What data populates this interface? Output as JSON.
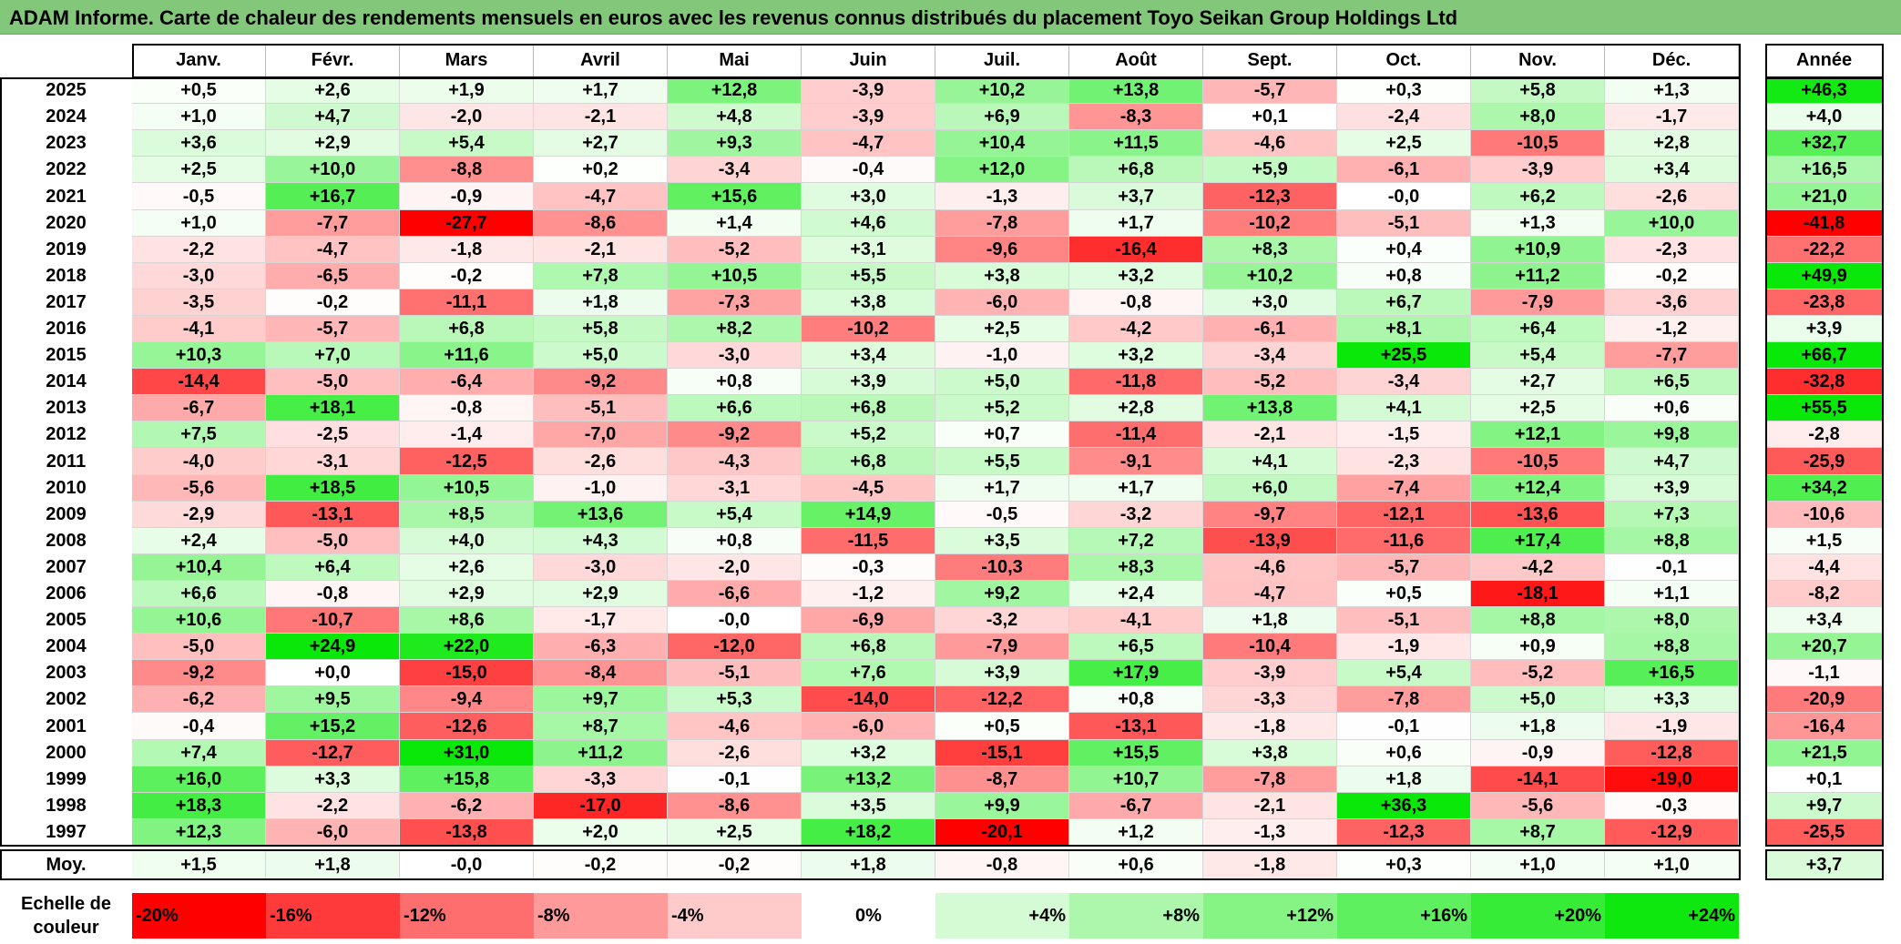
{
  "title": "ADAM Informe. Carte de chaleur des rendements mensuels en euros avec les revenus connus distribués du placement Toyo Seikan Group Holdings Ltd",
  "chart_data": {
    "type": "heatmap",
    "columns": [
      "Janv.",
      "Févr.",
      "Mars",
      "Avril",
      "Mai",
      "Juin",
      "Juil.",
      "Août",
      "Sept.",
      "Oct.",
      "Nov.",
      "Déc."
    ],
    "year_column_label": "Année",
    "rows": [
      {
        "year": "2025",
        "months": [
          "+0,5",
          "+2,6",
          "+1,9",
          "+1,7",
          "+12,8",
          "-3,9",
          "+10,2",
          "+13,8",
          "-5,7",
          "+0,3",
          "+5,8",
          "+1,3"
        ],
        "annual": "+46,3"
      },
      {
        "year": "2024",
        "months": [
          "+1,0",
          "+4,7",
          "-2,0",
          "-2,1",
          "+4,8",
          "-3,9",
          "+6,9",
          "-8,3",
          "+0,1",
          "-2,4",
          "+8,0",
          "-1,7"
        ],
        "annual": "+4,0"
      },
      {
        "year": "2023",
        "months": [
          "+3,6",
          "+2,9",
          "+5,4",
          "+2,7",
          "+9,3",
          "-4,7",
          "+10,4",
          "+11,5",
          "-4,6",
          "+2,5",
          "-10,5",
          "+2,8"
        ],
        "annual": "+32,7"
      },
      {
        "year": "2022",
        "months": [
          "+2,5",
          "+10,0",
          "-8,8",
          "+0,2",
          "-3,4",
          "-0,4",
          "+12,0",
          "+6,8",
          "+5,9",
          "-6,1",
          "-3,9",
          "+3,4"
        ],
        "annual": "+16,5"
      },
      {
        "year": "2021",
        "months": [
          "-0,5",
          "+16,7",
          "-0,9",
          "-4,7",
          "+15,6",
          "+3,0",
          "-1,3",
          "+3,7",
          "-12,3",
          "-0,0",
          "+6,2",
          "-2,6"
        ],
        "annual": "+21,0"
      },
      {
        "year": "2020",
        "months": [
          "+1,0",
          "-7,7",
          "-27,7",
          "-8,6",
          "+1,4",
          "+4,6",
          "-7,8",
          "+1,7",
          "-10,2",
          "-5,1",
          "+1,3",
          "+10,0"
        ],
        "annual": "-41,8"
      },
      {
        "year": "2019",
        "months": [
          "-2,2",
          "-4,7",
          "-1,8",
          "-2,1",
          "-5,2",
          "+3,1",
          "-9,6",
          "-16,4",
          "+8,3",
          "+0,4",
          "+10,9",
          "-2,3"
        ],
        "annual": "-22,2"
      },
      {
        "year": "2018",
        "months": [
          "-3,0",
          "-6,5",
          "-0,2",
          "+7,8",
          "+10,5",
          "+5,5",
          "+3,8",
          "+3,2",
          "+10,2",
          "+0,8",
          "+11,2",
          "-0,2"
        ],
        "annual": "+49,9"
      },
      {
        "year": "2017",
        "months": [
          "-3,5",
          "-0,2",
          "-11,1",
          "+1,8",
          "-7,3",
          "+3,8",
          "-6,0",
          "-0,8",
          "+3,0",
          "+6,7",
          "-7,9",
          "-3,6"
        ],
        "annual": "-23,8"
      },
      {
        "year": "2016",
        "months": [
          "-4,1",
          "-5,7",
          "+6,8",
          "+5,8",
          "+8,2",
          "-10,2",
          "+2,5",
          "-4,2",
          "-6,1",
          "+8,1",
          "+6,4",
          "-1,2"
        ],
        "annual": "+3,9"
      },
      {
        "year": "2015",
        "months": [
          "+10,3",
          "+7,0",
          "+11,6",
          "+5,0",
          "-3,0",
          "+3,4",
          "-1,0",
          "+3,2",
          "-3,4",
          "+25,5",
          "+5,4",
          "-7,7"
        ],
        "annual": "+66,7"
      },
      {
        "year": "2014",
        "months": [
          "-14,4",
          "-5,0",
          "-6,4",
          "-9,2",
          "+0,8",
          "+3,9",
          "+5,0",
          "-11,8",
          "-5,2",
          "-3,4",
          "+2,7",
          "+6,5"
        ],
        "annual": "-32,8"
      },
      {
        "year": "2013",
        "months": [
          "-6,7",
          "+18,1",
          "-0,8",
          "-5,1",
          "+6,6",
          "+6,8",
          "+5,2",
          "+2,8",
          "+13,8",
          "+4,1",
          "+2,5",
          "+0,6"
        ],
        "annual": "+55,5"
      },
      {
        "year": "2012",
        "months": [
          "+7,5",
          "-2,5",
          "-1,4",
          "-7,0",
          "-9,2",
          "+5,2",
          "+0,7",
          "-11,4",
          "-2,1",
          "-1,5",
          "+12,1",
          "+9,8"
        ],
        "annual": "-2,8"
      },
      {
        "year": "2011",
        "months": [
          "-4,0",
          "-3,1",
          "-12,5",
          "-2,6",
          "-4,3",
          "+6,8",
          "+5,5",
          "-9,1",
          "+4,1",
          "-2,3",
          "-10,5",
          "+4,7"
        ],
        "annual": "-25,9"
      },
      {
        "year": "2010",
        "months": [
          "-5,6",
          "+18,5",
          "+10,5",
          "-1,0",
          "-3,1",
          "-4,5",
          "+1,7",
          "+1,7",
          "+6,0",
          "-7,4",
          "+12,4",
          "+3,9"
        ],
        "annual": "+34,2"
      },
      {
        "year": "2009",
        "months": [
          "-2,9",
          "-13,1",
          "+8,5",
          "+13,6",
          "+5,4",
          "+14,9",
          "-0,5",
          "-3,2",
          "-9,7",
          "-12,1",
          "-13,6",
          "+7,3"
        ],
        "annual": "-10,6"
      },
      {
        "year": "2008",
        "months": [
          "+2,4",
          "-5,0",
          "+4,0",
          "+4,3",
          "+0,8",
          "-11,5",
          "+3,5",
          "+7,2",
          "-13,9",
          "-11,6",
          "+17,4",
          "+8,8"
        ],
        "annual": "+1,5"
      },
      {
        "year": "2007",
        "months": [
          "+10,4",
          "+6,4",
          "+2,6",
          "-3,0",
          "-2,0",
          "-0,3",
          "-10,3",
          "+8,3",
          "-4,6",
          "-5,7",
          "-4,2",
          "-0,1"
        ],
        "annual": "-4,4"
      },
      {
        "year": "2006",
        "months": [
          "+6,6",
          "-0,8",
          "+2,9",
          "+2,9",
          "-6,6",
          "-1,2",
          "+9,2",
          "+2,4",
          "-4,7",
          "+0,5",
          "-18,1",
          "+1,1"
        ],
        "annual": "-8,2"
      },
      {
        "year": "2005",
        "months": [
          "+10,6",
          "-10,7",
          "+8,6",
          "-1,7",
          "-0,0",
          "-6,9",
          "-3,2",
          "-4,1",
          "+1,8",
          "-5,1",
          "+8,8",
          "+8,0"
        ],
        "annual": "+3,4"
      },
      {
        "year": "2004",
        "months": [
          "-5,0",
          "+24,9",
          "+22,0",
          "-6,3",
          "-12,0",
          "+6,8",
          "-7,9",
          "+6,5",
          "-10,4",
          "-1,9",
          "+0,9",
          "+8,8"
        ],
        "annual": "+20,7"
      },
      {
        "year": "2003",
        "months": [
          "-9,2",
          "+0,0",
          "-15,0",
          "-8,4",
          "-5,1",
          "+7,6",
          "+3,9",
          "+17,9",
          "-3,9",
          "+5,4",
          "-5,2",
          "+16,5"
        ],
        "annual": "-1,1"
      },
      {
        "year": "2002",
        "months": [
          "-6,2",
          "+9,5",
          "-9,4",
          "+9,7",
          "+5,3",
          "-14,0",
          "-12,2",
          "+0,8",
          "-3,3",
          "-7,8",
          "+5,0",
          "+3,3"
        ],
        "annual": "-20,9"
      },
      {
        "year": "2001",
        "months": [
          "-0,4",
          "+15,2",
          "-12,6",
          "+8,7",
          "-4,6",
          "-6,0",
          "+0,5",
          "-13,1",
          "-1,8",
          "-0,1",
          "+1,8",
          "-1,9"
        ],
        "annual": "-16,4"
      },
      {
        "year": "2000",
        "months": [
          "+7,4",
          "-12,7",
          "+31,0",
          "+11,2",
          "-2,6",
          "+3,2",
          "-15,1",
          "+15,5",
          "+3,8",
          "+0,6",
          "-0,9",
          "-12,8"
        ],
        "annual": "+21,5"
      },
      {
        "year": "1999",
        "months": [
          "+16,0",
          "+3,3",
          "+15,8",
          "-3,3",
          "-0,1",
          "+13,2",
          "-8,7",
          "+10,7",
          "-7,8",
          "+1,8",
          "-14,1",
          "-19,0"
        ],
        "annual": "+0,1"
      },
      {
        "year": "1998",
        "months": [
          "+18,3",
          "-2,2",
          "-6,2",
          "-17,0",
          "-8,6",
          "+3,5",
          "+9,9",
          "-6,7",
          "-2,1",
          "+36,3",
          "-5,6",
          "-0,3"
        ],
        "annual": "+9,7"
      },
      {
        "year": "1997",
        "months": [
          "+12,3",
          "-6,0",
          "-13,8",
          "+2,0",
          "+2,5",
          "+18,2",
          "-20,1",
          "+1,2",
          "-1,3",
          "-12,3",
          "+8,7",
          "-12,9"
        ],
        "annual": "-25,5"
      }
    ],
    "average": {
      "label": "Moy.",
      "months": [
        "+1,5",
        "+1,8",
        "-0,0",
        "-0,2",
        "-0,2",
        "+1,8",
        "-0,8",
        "+0,6",
        "-1,8",
        "+0,3",
        "+1,0",
        "+1,0"
      ],
      "annual": "+3,7"
    },
    "legend": {
      "label": "Echelle de couleur",
      "stops": [
        {
          "label": "-20%",
          "value": -20,
          "color": "#ff0000"
        },
        {
          "label": "-16%",
          "value": -16,
          "color": "#ff3a3a"
        },
        {
          "label": "-12%",
          "value": -12,
          "color": "#ff6e6e"
        },
        {
          "label": "-8%",
          "value": -8,
          "color": "#ff9a9a"
        },
        {
          "label": "-4%",
          "value": -4,
          "color": "#ffcaca"
        },
        {
          "label": "0%",
          "value": 0,
          "color": "#ffffff"
        },
        {
          "label": "+4%",
          "value": 4,
          "color": "#d5fbd5"
        },
        {
          "label": "+8%",
          "value": 8,
          "color": "#adf7ad"
        },
        {
          "label": "+12%",
          "value": 12,
          "color": "#85f485"
        },
        {
          "label": "+16%",
          "value": 16,
          "color": "#5ef05e"
        },
        {
          "label": "+20%",
          "value": 20,
          "color": "#36ec36"
        },
        {
          "label": "+24%",
          "value": 24,
          "color": "#0fe80f"
        }
      ]
    }
  }
}
